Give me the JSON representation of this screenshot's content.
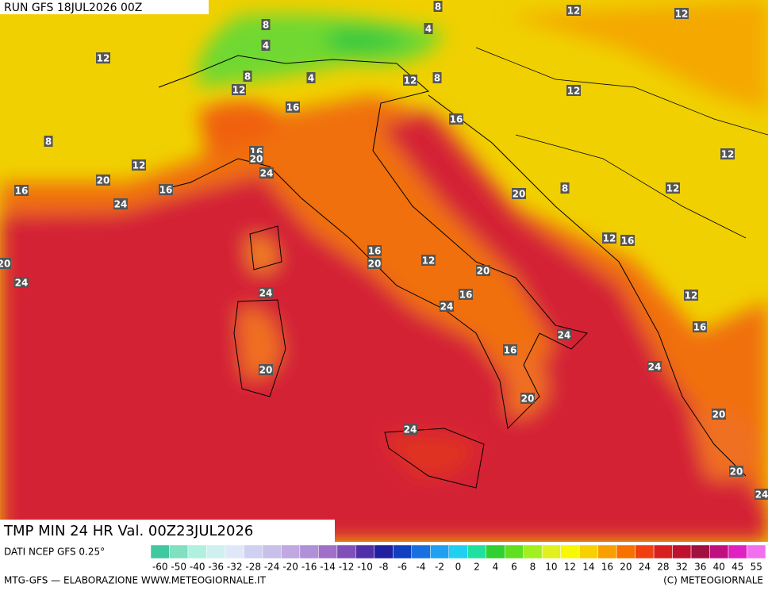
{
  "header": {
    "run": "RUN GFS 18JUL2026 00Z"
  },
  "map": {
    "contour_labels": [
      8,
      12,
      12,
      8,
      4,
      4,
      12,
      8,
      4,
      12,
      8,
      12,
      12,
      16,
      16,
      8,
      16,
      20,
      12,
      12,
      24,
      20,
      16,
      16,
      20,
      8,
      12,
      24,
      12,
      16,
      16,
      20,
      12,
      20,
      20,
      24,
      24,
      12,
      16,
      24,
      16,
      24,
      16,
      20,
      24,
      20,
      20,
      24,
      20,
      24
    ]
  },
  "footer": {
    "title": "TMP MIN 24 HR Val. 00Z23JUL2026",
    "source": "DATI NCEP GFS 0.25°",
    "credit": "MTG-GFS — ELABORAZIONE WWW.METEOGIORNALE.IT",
    "copyright": "(C) METEOGIORNALE"
  },
  "colorbar": {
    "labels": [
      -60,
      -50,
      -40,
      -36,
      -32,
      -28,
      -24,
      -20,
      -16,
      -14,
      -12,
      -10,
      -8,
      -6,
      -4,
      -2,
      0,
      2,
      4,
      6,
      8,
      10,
      12,
      14,
      16,
      20,
      24,
      28,
      32,
      36,
      40,
      45,
      55
    ],
    "colors": [
      "#40c8a0",
      "#80e0c0",
      "#b0f0e0",
      "#d0f0f0",
      "#e0e8f8",
      "#d0d0f0",
      "#c8c0e8",
      "#c0a8e0",
      "#b090d8",
      "#a070c8",
      "#8050b8",
      "#5030a8",
      "#2020a0",
      "#1040c0",
      "#1870e0",
      "#20a0f0",
      "#20d0f0",
      "#20e0a0",
      "#30d030",
      "#60e020",
      "#a0f020",
      "#e0f020",
      "#f8f800",
      "#f8d000",
      "#f8a000",
      "#f87000",
      "#f04010",
      "#d82020",
      "#c01030",
      "#a01040",
      "#c01080",
      "#e020c0",
      "#f070f0"
    ]
  }
}
